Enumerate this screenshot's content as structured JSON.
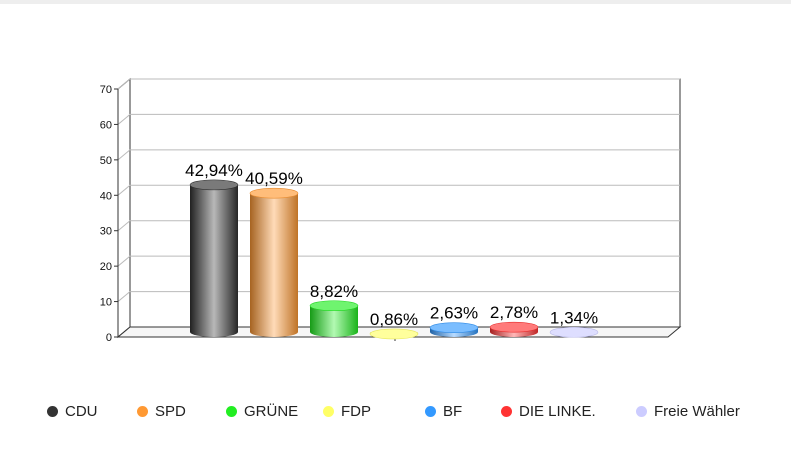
{
  "chart_data": {
    "type": "bar",
    "style": "3d-cylinder",
    "categories": [
      "CDU",
      "SPD",
      "GRÜNE",
      "FDP",
      "BF",
      "DIE LINKE.",
      "Freie Wähler"
    ],
    "values": [
      42.94,
      40.59,
      8.82,
      0.86,
      2.63,
      2.78,
      1.34
    ],
    "value_labels": [
      "42,94%",
      "40,59%",
      "8,82%",
      "0,86%",
      "2,63%",
      "2,78%",
      "1,34%"
    ],
    "colors": [
      "#333333",
      "#ff9933",
      "#22ee22",
      "#ffff66",
      "#3399ff",
      "#ff3333",
      "#ccccff"
    ],
    "title": "",
    "xlabel": "",
    "ylabel": "",
    "ylim": [
      0,
      70
    ],
    "yticks": [
      "0",
      "10",
      "20",
      "30",
      "40",
      "50",
      "60",
      "70"
    ],
    "grid": true,
    "legend_position": "bottom"
  }
}
